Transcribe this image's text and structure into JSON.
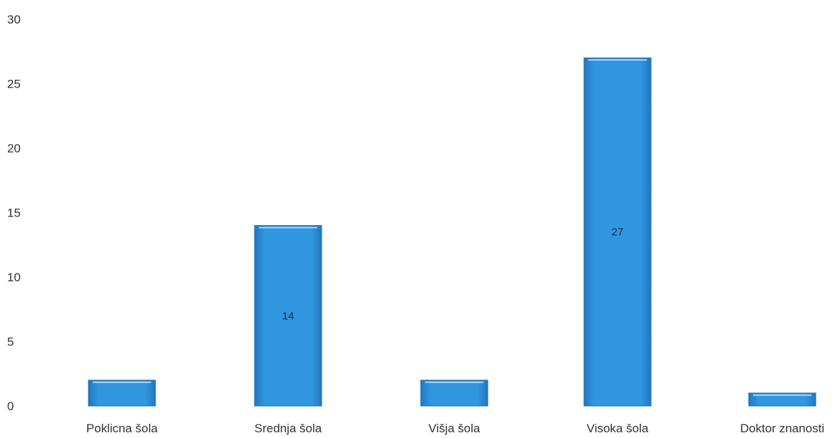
{
  "chart_data": {
    "type": "bar",
    "categories": [
      "Poklicna šola",
      "Srednja šola",
      "Višja šola",
      "Visoka šola",
      "Doktor znanosti"
    ],
    "values": [
      2,
      14,
      2,
      27,
      1
    ],
    "data_labels": [
      "",
      "14",
      "",
      "27",
      ""
    ],
    "yticks": [
      "0",
      "5",
      "10",
      "15",
      "20",
      "25",
      "30"
    ],
    "ylim": [
      0,
      30
    ],
    "grid": false,
    "legend": "none",
    "bar_color": "#2a86d1",
    "bar_edge_color": "#1f6fb2"
  }
}
